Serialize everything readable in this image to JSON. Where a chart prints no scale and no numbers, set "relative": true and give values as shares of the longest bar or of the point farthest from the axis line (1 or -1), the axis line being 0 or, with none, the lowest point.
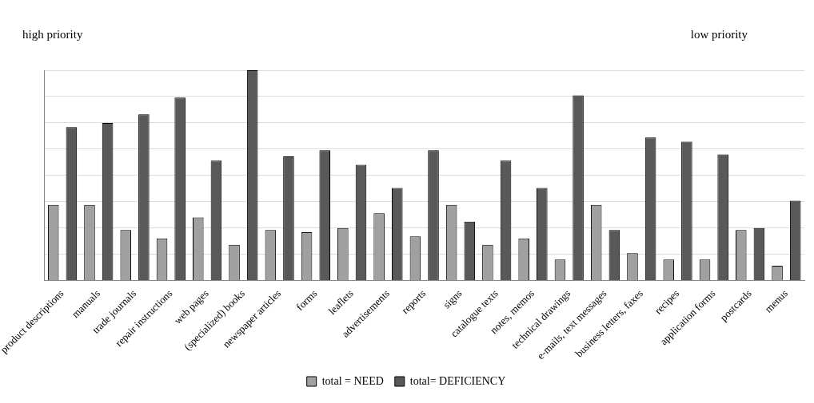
{
  "chart_data": {
    "type": "bar",
    "relative": true,
    "categories": [
      "product descriptions",
      "manuals",
      "trade journals",
      "repair instructions",
      "web pages",
      "(specialized) books",
      "newspaper articles",
      "forms",
      "leaflets",
      "advertisements",
      "reports",
      "signs",
      "catalogue texts",
      "notes, memos",
      "technical drawings",
      "e-mails, text messages",
      "business letters, faxes",
      "recipes",
      "application forms",
      "postcards",
      "menus"
    ],
    "series": [
      {
        "name": "total = NEED",
        "color": "#a0a0a0",
        "values": [
          0.36,
          0.36,
          0.24,
          0.2,
          0.3,
          0.17,
          0.24,
          0.23,
          0.25,
          0.32,
          0.21,
          0.36,
          0.17,
          0.2,
          0.1,
          0.36,
          0.13,
          0.1,
          0.1,
          0.24,
          0.07
        ]
      },
      {
        "name": "total= DEFICIENCY",
        "color": "#595959",
        "values": [
          0.73,
          0.75,
          0.79,
          0.87,
          0.57,
          1,
          0.59,
          0.62,
          0.55,
          0.44,
          0.62,
          0.28,
          0.57,
          0.44,
          0.88,
          0.24,
          0.68,
          0.66,
          0.6,
          0.25,
          0.38
        ]
      }
    ],
    "annotations": [
      "high priority",
      "low priority"
    ],
    "grid": "y",
    "legend": "bottom"
  }
}
